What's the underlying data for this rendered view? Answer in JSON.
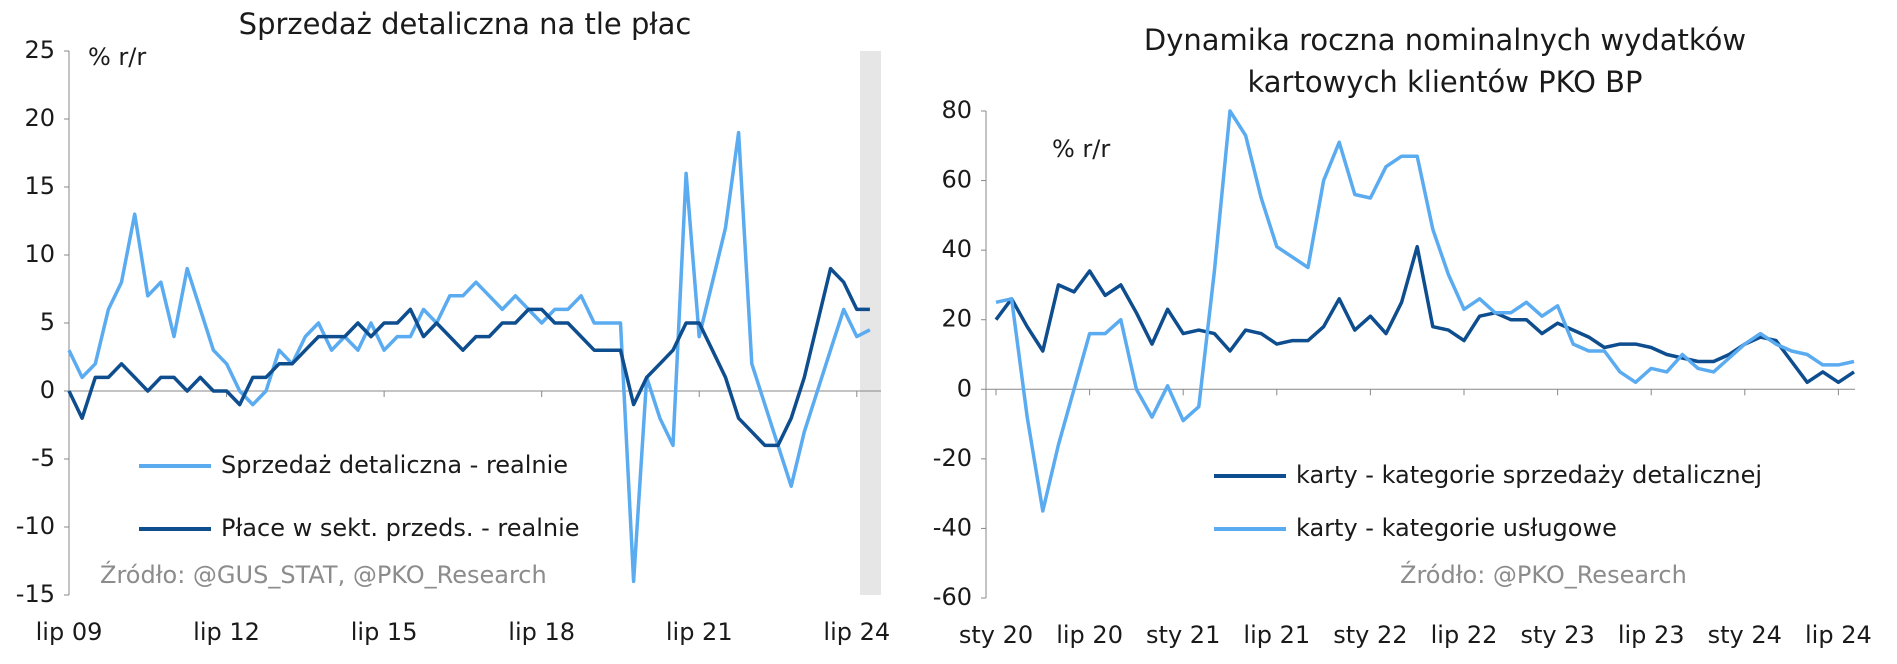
{
  "chart_data": [
    {
      "type": "line",
      "title": "Sprzedaż detaliczna na tle płac",
      "annotation": "% r/r",
      "source": "Źródło: @GUS_STAT, @PKO_Research",
      "categories": [
        "lip 09",
        null,
        null,
        null,
        null,
        null,
        null,
        null,
        null,
        null,
        null,
        null,
        "lip 12",
        null,
        null,
        null,
        null,
        null,
        null,
        null,
        null,
        null,
        null,
        null,
        "lip 15",
        null,
        null,
        null,
        null,
        null,
        null,
        null,
        null,
        null,
        null,
        null,
        "lip 18",
        null,
        null,
        null,
        null,
        null,
        null,
        null,
        null,
        null,
        null,
        null,
        "lip 21",
        null,
        null,
        null,
        null,
        null,
        null,
        null,
        null,
        null,
        null,
        null,
        "lip 24",
        null
      ],
      "ylim": [
        -15,
        25
      ],
      "yticks": [
        -15,
        -10,
        -5,
        0,
        5,
        10,
        15,
        20,
        25
      ],
      "series": [
        {
          "name": "Sprzedaż detaliczna - realnie",
          "color": "#5aabf0",
          "values": [
            3,
            1,
            2,
            6,
            8,
            13,
            7,
            8,
            4,
            9,
            6,
            3,
            2,
            0,
            -1,
            0,
            3,
            2,
            4,
            5,
            3,
            4,
            3,
            5,
            3,
            4,
            4,
            6,
            5,
            7,
            7,
            8,
            7,
            6,
            7,
            6,
            5,
            6,
            6,
            7,
            5,
            5,
            5,
            -14,
            1,
            -2,
            -4,
            16,
            4,
            8,
            12,
            19,
            2,
            -1,
            -4,
            -7,
            -3,
            0,
            3,
            6,
            4,
            4.5
          ]
        },
        {
          "name": "Płace w sekt. przeds. - realnie",
          "color": "#0e4d8e",
          "values": [
            0,
            -2,
            1,
            1,
            2,
            1,
            0,
            1,
            1,
            0,
            1,
            0,
            0,
            -1,
            1,
            1,
            2,
            2,
            3,
            4,
            4,
            4,
            5,
            4,
            5,
            5,
            6,
            4,
            5,
            4,
            3,
            4,
            4,
            5,
            5,
            6,
            6,
            5,
            5,
            4,
            3,
            3,
            3,
            -1,
            1,
            2,
            3,
            5,
            5,
            3,
            1,
            -2,
            -3,
            -4,
            -4,
            -2,
            1,
            5,
            9,
            8,
            6,
            6
          ]
        }
      ]
    },
    {
      "type": "line",
      "title": "Dynamika roczna nominalnych wydatków kartowych klientów PKO BP",
      "annotation": "% r/r",
      "source": "Źródło: @PKO_Research",
      "categories": [
        "sty 20",
        null,
        null,
        null,
        null,
        null,
        "lip 20",
        null,
        null,
        null,
        null,
        null,
        "sty 21",
        null,
        null,
        null,
        null,
        null,
        "lip 21",
        null,
        null,
        null,
        null,
        null,
        "sty 22",
        null,
        null,
        null,
        null,
        null,
        "lip 22",
        null,
        null,
        null,
        null,
        null,
        "sty 23",
        null,
        null,
        null,
        null,
        null,
        "lip 23",
        null,
        null,
        null,
        null,
        null,
        "sty 24",
        null,
        null,
        null,
        null,
        null,
        "lip 24",
        null
      ],
      "ylim": [
        -60,
        80
      ],
      "yticks": [
        -60,
        -40,
        -20,
        0,
        20,
        40,
        60,
        80
      ],
      "series": [
        {
          "name": "karty - kategorie sprzedaży detalicznej",
          "color": "#0e4d8e",
          "values": [
            20,
            26,
            18,
            11,
            30,
            28,
            34,
            27,
            30,
            22,
            13,
            23,
            16,
            17,
            16,
            11,
            17,
            16,
            13,
            14,
            14,
            18,
            26,
            17,
            21,
            16,
            25,
            41,
            18,
            17,
            14,
            21,
            22,
            20,
            20,
            16,
            19,
            17,
            15,
            12,
            13,
            13,
            12,
            10,
            9,
            8,
            8,
            10,
            13,
            15,
            14,
            8,
            2,
            5,
            2,
            5
          ]
        },
        {
          "name": "karty - kategorie usługowe",
          "color": "#5aabf0",
          "values": [
            25,
            26,
            -8,
            -35,
            -16,
            0,
            16,
            16,
            20,
            0,
            -8,
            1,
            -9,
            -5,
            34,
            80,
            73,
            55,
            41,
            38,
            35,
            60,
            71,
            56,
            55,
            64,
            67,
            67,
            46,
            33,
            23,
            26,
            22,
            22,
            25,
            21,
            24,
            13,
            11,
            11,
            5,
            2,
            6,
            5,
            10,
            6,
            5,
            9,
            13,
            16,
            13,
            11,
            10,
            7,
            7,
            8
          ]
        }
      ]
    }
  ]
}
